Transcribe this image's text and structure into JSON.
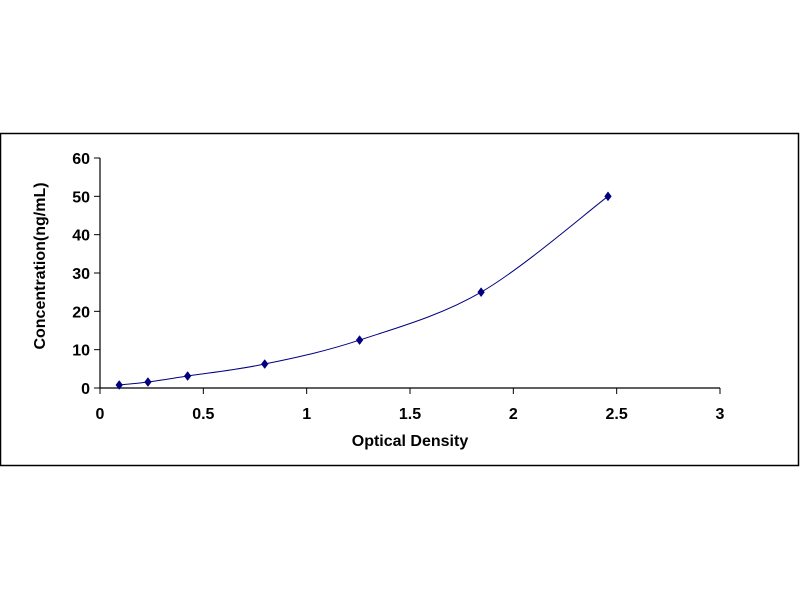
{
  "chart_data": {
    "type": "scatter",
    "title": "",
    "xlabel": "Optical Density",
    "ylabel": "Concentration(ng/mL)",
    "xlim": [
      0,
      3
    ],
    "ylim": [
      0,
      60
    ],
    "x_ticks": [
      "0",
      "0.5",
      "1",
      "1.5",
      "2",
      "2.5",
      "3"
    ],
    "y_ticks": [
      "0",
      "10",
      "20",
      "30",
      "40",
      "50",
      "60"
    ],
    "grid": false,
    "legend": "none",
    "series": [
      {
        "marker": "diamond",
        "line": "smooth",
        "color": "#000080",
        "x": [
          0.093,
          0.232,
          0.424,
          0.797,
          1.256,
          1.844,
          2.458
        ],
        "y": [
          0.78,
          1.56,
          3.12,
          6.25,
          12.5,
          25,
          50
        ]
      }
    ]
  }
}
